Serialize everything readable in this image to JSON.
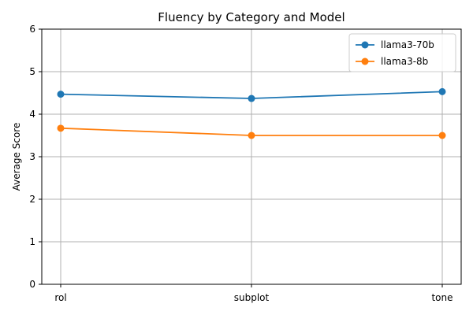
{
  "chart_data": {
    "type": "line",
    "title": "Fluency by Category and Model",
    "xlabel": "",
    "ylabel": "Average Score",
    "categories": [
      "rol",
      "subplot",
      "tone"
    ],
    "ylim": [
      0,
      6
    ],
    "yticks": [
      0,
      1,
      2,
      3,
      4,
      5,
      6
    ],
    "grid": true,
    "legend_position": "top-right",
    "series": [
      {
        "name": "llama3-70b",
        "color": "#1f77b4",
        "values": [
          4.47,
          4.37,
          4.53
        ]
      },
      {
        "name": "llama3-8b",
        "color": "#ff7f0e",
        "values": [
          3.67,
          3.5,
          3.5
        ]
      }
    ]
  }
}
